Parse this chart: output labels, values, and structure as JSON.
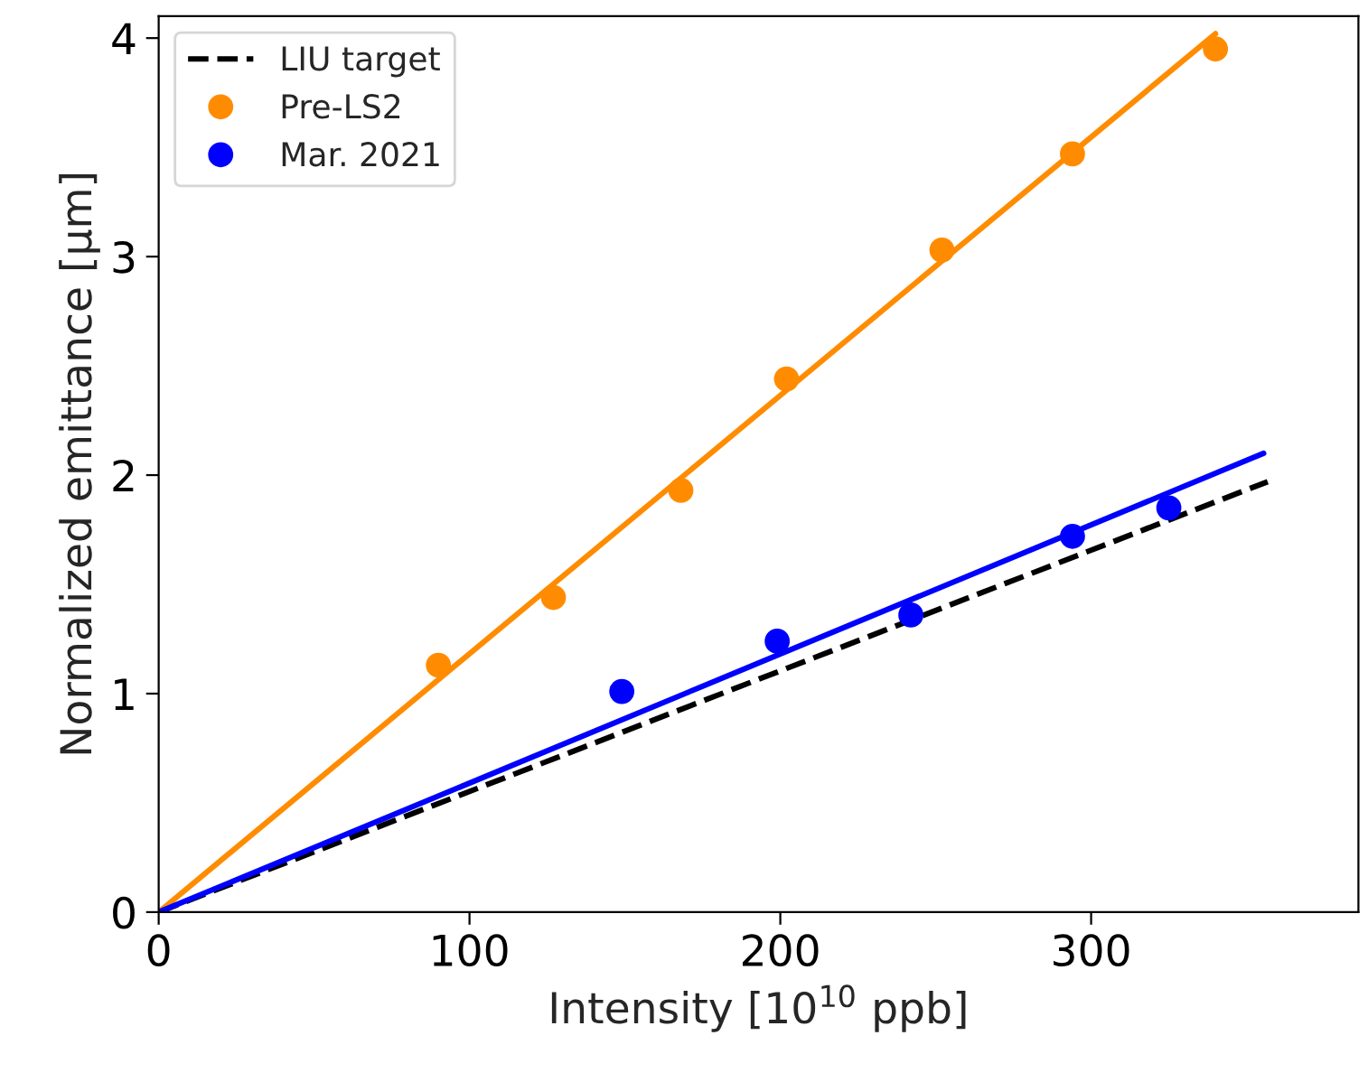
{
  "chart_data": {
    "type": "scatter",
    "xlabel": "Intensity [10$^{10}$ ppb]",
    "ylabel": "Normalized emittance [μm]",
    "xlim": [
      0,
      386
    ],
    "ylim": [
      0,
      4.1
    ],
    "xticks": [
      0,
      100,
      200,
      300
    ],
    "yticks": [
      0,
      1,
      2,
      3,
      4
    ],
    "grid": false,
    "legend": "top left",
    "series": [
      {
        "name": "LIU target",
        "type": "line",
        "marker": "none",
        "line_style": "dashed",
        "color": "#000000",
        "x": [
          0,
          356.8
        ],
        "values": [
          0,
          1.97
        ]
      },
      {
        "type": "line",
        "marker": "none",
        "line_style": "solid",
        "color": "#ff8c00",
        "x": [
          0,
          340
        ],
        "values": [
          0,
          4.02
        ]
      },
      {
        "type": "line",
        "marker": "none",
        "line_style": "solid",
        "color": "#0000ff",
        "x": [
          0,
          355.5
        ],
        "values": [
          0,
          2.1
        ]
      },
      {
        "name": "Pre-LS2",
        "marker": "circle",
        "color": "#ff8c00",
        "x": [
          90,
          127,
          168,
          202,
          252,
          294,
          340
        ],
        "values": [
          1.13,
          1.44,
          1.93,
          2.44,
          3.03,
          3.47,
          3.95
        ]
      },
      {
        "name": "Mar. 2021",
        "marker": "circle",
        "color": "#0000ff",
        "x": [
          149,
          199,
          242,
          294,
          325
        ],
        "values": [
          1.01,
          1.24,
          1.36,
          1.72,
          1.85
        ]
      }
    ]
  }
}
